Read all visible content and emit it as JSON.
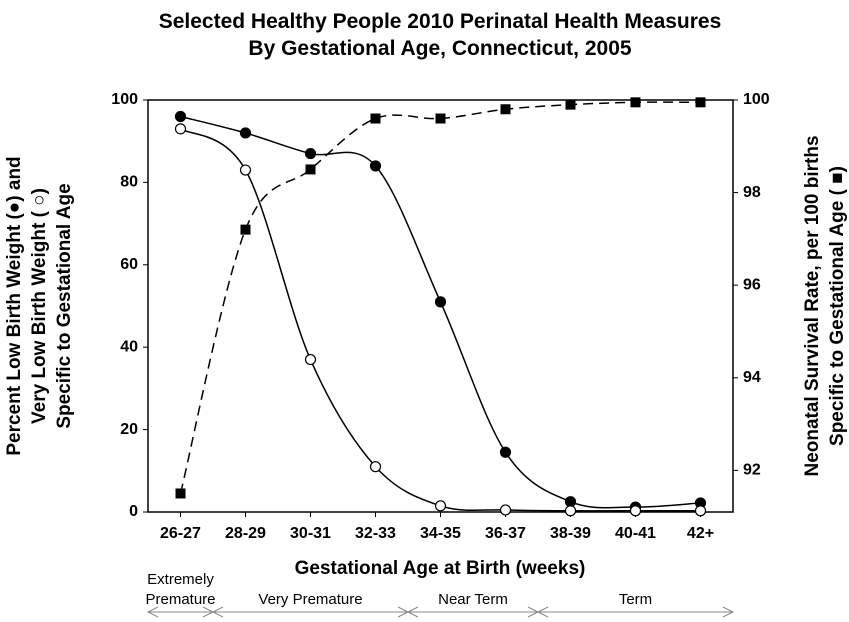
{
  "chart_data": {
    "type": "line",
    "title": [
      "Selected Healthy People 2010 Perinatal Health Measures",
      "By Gestational Age, Connecticut, 2005"
    ],
    "x_label": "Gestational Age at Birth (weeks)",
    "y_label": [
      "Percent Low Birth Weight (●) and",
      "Very Low Birth Weight ( ○)",
      "Specific to Gestational Age"
    ],
    "y2_label": [
      "Neonatal Survival Rate, per 100 births",
      "Specific to Gestational Age ( ■)"
    ],
    "categories": [
      "26-27",
      "28-29",
      "30-31",
      "32-33",
      "34-35",
      "36-37",
      "38-39",
      "40-41",
      "42+"
    ],
    "series": [
      {
        "name": "Percent Low Birth Weight",
        "marker": "filled-circle",
        "color": "#000000",
        "values": [
          96,
          92,
          87,
          84,
          51,
          14.5,
          2.5,
          1.2,
          2.2
        ]
      },
      {
        "name": "Very Low Birth Weight",
        "marker": "open-circle",
        "color": "#000000",
        "values": [
          93,
          83,
          37,
          11,
          1.5,
          0.5,
          0.3,
          0.3,
          0.3
        ]
      },
      {
        "name": "Neonatal Survival Rate",
        "marker": "square",
        "color": "#000000",
        "dashed": true,
        "axis": "y2",
        "values": [
          91.5,
          97.2,
          98.5,
          99.6,
          99.6,
          99.8,
          99.9,
          99.95,
          99.95
        ]
      }
    ],
    "ylim": [
      0,
      100
    ],
    "yticks": [
      0,
      20,
      40,
      60,
      80,
      100
    ],
    "y2lim": [
      91.1,
      100
    ],
    "y2ticks": [
      92,
      94,
      96,
      98,
      100
    ],
    "annotations": [
      {
        "text": [
          "Extremely",
          "Premature"
        ],
        "from": 0,
        "to": 1
      },
      {
        "text": [
          "Very Premature"
        ],
        "from": 1,
        "to": 4
      },
      {
        "text": [
          "Near Term"
        ],
        "from": 4,
        "to": 6
      },
      {
        "text": [
          "Term"
        ],
        "from": 6,
        "to": 9
      }
    ]
  }
}
